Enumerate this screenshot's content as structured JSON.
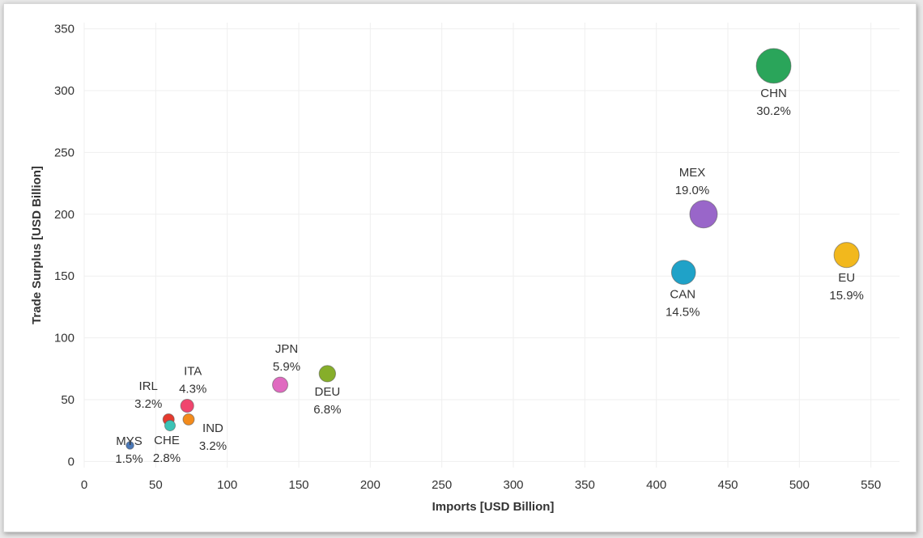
{
  "chart_data": {
    "type": "scatter",
    "xlabel": "Imports [USD Billion]",
    "ylabel": "Trade Surplus [USD Billion]",
    "xlim": [
      0,
      570
    ],
    "ylim": [
      -5,
      355
    ],
    "xticks": [
      0,
      50,
      100,
      150,
      200,
      250,
      300,
      350,
      400,
      450,
      500,
      550
    ],
    "yticks": [
      0,
      50,
      100,
      150,
      200,
      250,
      300,
      350
    ],
    "grid": true,
    "size_variable": "share",
    "points": [
      {
        "code": "CHN",
        "share_label": "30.2%",
        "share": 30.2,
        "x": 482,
        "y": 320,
        "color": "#2aa55a"
      },
      {
        "code": "MEX",
        "share_label": "19.0%",
        "share": 19.0,
        "x": 433,
        "y": 200,
        "color": "#9966c9"
      },
      {
        "code": "EU",
        "share_label": "15.9%",
        "share": 15.9,
        "x": 533,
        "y": 167,
        "color": "#f2b81d"
      },
      {
        "code": "CAN",
        "share_label": "14.5%",
        "share": 14.5,
        "x": 419,
        "y": 153,
        "color": "#1fa2c8"
      },
      {
        "code": "DEU",
        "share_label": "6.8%",
        "share": 6.8,
        "x": 170,
        "y": 71,
        "color": "#86ae2a"
      },
      {
        "code": "JPN",
        "share_label": "5.9%",
        "share": 5.9,
        "x": 137,
        "y": 62,
        "color": "#e06ac0"
      },
      {
        "code": "ITA",
        "share_label": "4.3%",
        "share": 4.3,
        "x": 72,
        "y": 45,
        "color": "#f0456e"
      },
      {
        "code": "IRL",
        "share_label": "3.2%",
        "share": 3.2,
        "x": 59,
        "y": 34,
        "color": "#e53a2e"
      },
      {
        "code": "IND",
        "share_label": "3.2%",
        "share": 3.2,
        "x": 73,
        "y": 34,
        "color": "#f38b1c"
      },
      {
        "code": "CHE",
        "share_label": "2.8%",
        "share": 2.8,
        "x": 60,
        "y": 29,
        "color": "#3cc3b6"
      },
      {
        "code": "MYS",
        "share_label": "1.5%",
        "share": 1.5,
        "x": 32,
        "y": 13,
        "color": "#4a78b8"
      }
    ]
  }
}
